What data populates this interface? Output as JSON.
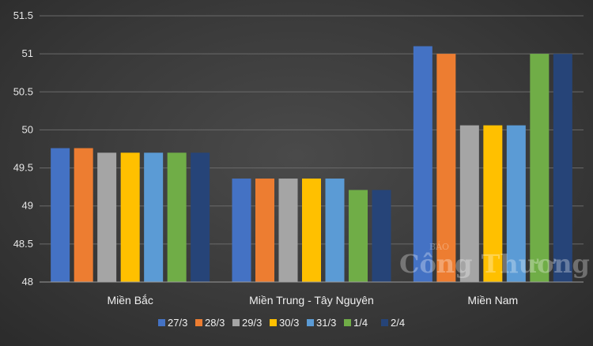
{
  "chart_data": {
    "type": "bar",
    "title": "",
    "xlabel": "",
    "ylabel": "",
    "categories": [
      "Miền Bắc",
      "Miền Trung - Tây Nguyên",
      "Miền Nam"
    ],
    "series": [
      {
        "name": "27/3",
        "values": [
          49.76,
          49.36,
          51.1
        ],
        "color": "#4472C4"
      },
      {
        "name": "28/3",
        "values": [
          49.76,
          49.36,
          51.0
        ],
        "color": "#ED7D31"
      },
      {
        "name": "29/3",
        "values": [
          49.7,
          49.36,
          50.06
        ],
        "color": "#A5A5A5"
      },
      {
        "name": "30/3",
        "values": [
          49.7,
          49.36,
          50.06
        ],
        "color": "#FFC000"
      },
      {
        "name": "31/3",
        "values": [
          49.7,
          49.36,
          50.06
        ],
        "color": "#5B9BD5"
      },
      {
        "name": "1/4",
        "values": [
          49.7,
          49.21,
          51.0
        ],
        "color": "#70AD47"
      },
      {
        "name": "2/4",
        "values": [
          49.7,
          49.21,
          51.0
        ],
        "color": "#264478"
      }
    ],
    "yticks": [
      "48",
      "48.5",
      "49",
      "49.5",
      "50",
      "50.5",
      "51",
      "51.5"
    ],
    "ylim": [
      48,
      51.5
    ],
    "grid": true,
    "legend_position": "bottom"
  },
  "watermark": {
    "top": "BÁO",
    "main": "Công Thương"
  }
}
